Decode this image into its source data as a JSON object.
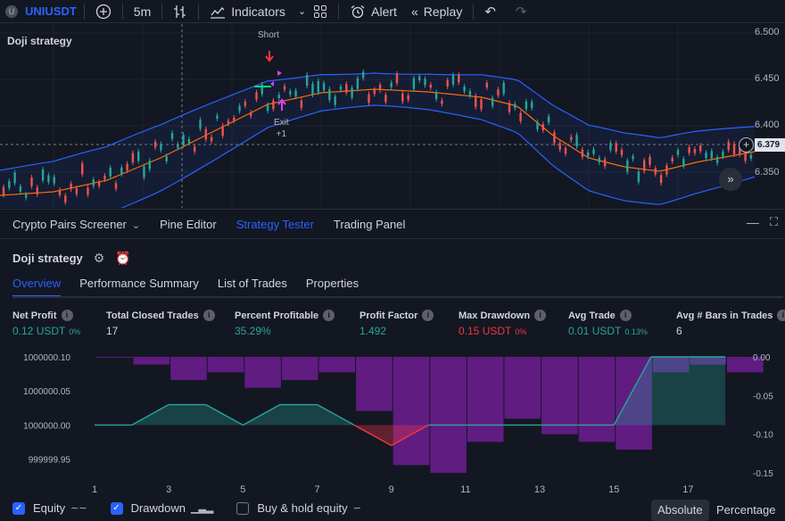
{
  "toolbar": {
    "symbol_badge": "U",
    "symbol": "UNIUSDT",
    "interval": "5m",
    "indicators_label": "Indicators",
    "alert_label": "Alert",
    "replay_label": "Replay"
  },
  "chart": {
    "title": "Doji strategy",
    "price_levels": [
      "6.500",
      "6.450",
      "6.400",
      "6.350"
    ],
    "current_price": "6.379",
    "signal_short": "Short",
    "signal_exit": "Exit",
    "signal_exit_qty": "+1"
  },
  "panel": {
    "tabs": [
      "Crypto Pairs Screener",
      "Pine Editor",
      "Strategy Tester",
      "Trading Panel"
    ],
    "active_tab": "Strategy Tester",
    "strategy_name": "Doji strategy",
    "subtabs": [
      "Overview",
      "Performance Summary",
      "List of Trades",
      "Properties"
    ],
    "active_subtab": "Overview"
  },
  "metrics": [
    {
      "label": "Net Profit",
      "value": "0.12 USDT",
      "sub": "0%",
      "tone": "pos"
    },
    {
      "label": "Total Closed Trades",
      "value": "17",
      "sub": "",
      "tone": "neu"
    },
    {
      "label": "Percent Profitable",
      "value": "35.29%",
      "sub": "",
      "tone": "pos"
    },
    {
      "label": "Profit Factor",
      "value": "1.492",
      "sub": "",
      "tone": "pos"
    },
    {
      "label": "Max Drawdown",
      "value": "0.15 USDT",
      "sub": "0%",
      "tone": "neg"
    },
    {
      "label": "Avg Trade",
      "value": "0.01 USDT",
      "sub": "0.13%",
      "tone": "pos"
    },
    {
      "label": "Avg # Bars in Trades",
      "value": "6",
      "sub": "",
      "tone": "neu"
    }
  ],
  "chart_data": {
    "type": "area",
    "x": [
      1,
      2,
      3,
      4,
      5,
      6,
      7,
      8,
      9,
      10,
      11,
      12,
      13,
      14,
      15,
      16,
      17,
      18
    ],
    "x_tick_labels": [
      "1",
      "3",
      "5",
      "7",
      "9",
      "11",
      "13",
      "15",
      "17"
    ],
    "left_axis_labels": [
      "1000000.10",
      "1000000.05",
      "1000000.00",
      "999999.95"
    ],
    "right_axis_labels": [
      "0.00",
      "-0.05",
      "-0.10",
      "-0.15"
    ],
    "series": [
      {
        "values": [
          1000000.0,
          1000000.0,
          1000000.03,
          1000000.03,
          1000000.0,
          1000000.03,
          1000000.03,
          1000000.0,
          999999.97,
          1000000.0,
          1000000.0,
          1000000.0,
          1000000.0,
          1000000.0,
          1000000.0,
          1000000.1,
          1000000.1,
          1000000.1
        ]
      },
      {
        "values": [
          0.0,
          -0.01,
          -0.03,
          -0.02,
          -0.04,
          -0.03,
          -0.02,
          -0.07,
          -0.14,
          -0.15,
          -0.11,
          -0.08,
          -0.1,
          -0.11,
          -0.12,
          -0.02,
          -0.01,
          -0.02
        ]
      }
    ],
    "ylim_left": [
      999999.93,
      1000000.1
    ],
    "ylim_right": [
      -0.15,
      0.0
    ],
    "colors": {
      "equity": "#26a69a",
      "drawdown": "#7b1fa2",
      "neg_equity": "#f23645"
    }
  },
  "legend": {
    "equity": "Equity",
    "drawdown": "Drawdown",
    "buyhold": "Buy & hold equity",
    "absolute": "Absolute",
    "percentage": "Percentage"
  }
}
